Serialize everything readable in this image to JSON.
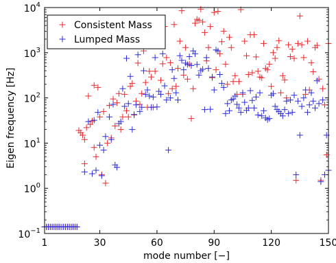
{
  "chart_data": {
    "type": "scatter",
    "title": "",
    "xlabel": "mode number [−]",
    "ylabel": "Eigen frequency [Hz]",
    "xlim": [
      1,
      150
    ],
    "ylim": [
      0.1,
      10000
    ],
    "x_scale": "linear",
    "y_scale": "log",
    "x_ticks": [
      1,
      30,
      60,
      90,
      120,
      150
    ],
    "x_tick_labels": [
      "1",
      "30",
      "60",
      "90",
      "120",
      "150"
    ],
    "y_ticks": [
      0.1,
      1,
      10,
      100,
      1000,
      10000
    ],
    "y_tick_labels": [
      {
        "base": "10",
        "exp": "−1"
      },
      {
        "base": "10",
        "exp": "0"
      },
      {
        "base": "10",
        "exp": "1"
      },
      {
        "base": "10",
        "exp": "2"
      },
      {
        "base": "10",
        "exp": "3"
      },
      {
        "base": "10",
        "exp": "4"
      }
    ],
    "grid": false,
    "legend_position": "top-left",
    "marker": "+",
    "series": [
      {
        "name": "Consistent Mass",
        "color": "#e8262a",
        "points": [
          [
            1,
            0.14
          ],
          [
            2,
            0.14
          ],
          [
            3,
            0.14
          ],
          [
            4,
            0.14
          ],
          [
            5,
            0.14
          ],
          [
            6,
            0.14
          ],
          [
            7,
            0.14
          ],
          [
            8,
            0.14
          ],
          [
            9,
            0.14
          ],
          [
            10,
            0.14
          ],
          [
            11,
            0.14
          ],
          [
            12,
            0.14
          ],
          [
            13,
            0.14
          ],
          [
            14,
            0.14
          ],
          [
            15,
            0.14
          ],
          [
            16,
            0.14
          ],
          [
            17,
            0.14
          ],
          [
            18,
            0.14
          ],
          [
            19,
            19
          ],
          [
            20,
            17
          ],
          [
            21,
            15
          ],
          [
            22,
            12
          ],
          [
            22,
            3.5
          ],
          [
            23,
            22
          ],
          [
            24,
            110
          ],
          [
            25,
            26
          ],
          [
            26,
            31
          ],
          [
            27,
            8
          ],
          [
            27,
            190
          ],
          [
            28,
            5
          ],
          [
            29,
            170
          ],
          [
            30,
            38
          ],
          [
            31,
            2
          ],
          [
            32,
            50
          ],
          [
            33,
            1.3
          ],
          [
            34,
            10
          ],
          [
            35,
            68
          ],
          [
            36,
            13
          ],
          [
            37,
            95
          ],
          [
            38,
            24
          ],
          [
            39,
            78
          ],
          [
            40,
            125
          ],
          [
            41,
            20
          ],
          [
            42,
            38
          ],
          [
            43,
            120
          ],
          [
            44,
            52
          ],
          [
            45,
            38
          ],
          [
            46,
            180
          ],
          [
            47,
            210
          ],
          [
            48,
            42
          ],
          [
            49,
            85
          ],
          [
            50,
            590
          ],
          [
            51,
            72
          ],
          [
            52,
            125
          ],
          [
            53,
            1100
          ],
          [
            54,
            220
          ],
          [
            55,
            62
          ],
          [
            56,
            390
          ],
          [
            57,
            290
          ],
          [
            58,
            62
          ],
          [
            59,
            390
          ],
          [
            60,
            2000
          ],
          [
            61,
            1550
          ],
          [
            62,
            245
          ],
          [
            63,
            570
          ],
          [
            64,
            3800
          ],
          [
            65,
            780
          ],
          [
            66,
            125
          ],
          [
            67,
            600
          ],
          [
            68,
            160
          ],
          [
            69,
            4200
          ],
          [
            70,
            180
          ],
          [
            71,
            450
          ],
          [
            72,
            1800
          ],
          [
            73,
            8500
          ],
          [
            74,
            320
          ],
          [
            75,
            1300
          ],
          [
            76,
            260
          ],
          [
            77,
            560
          ],
          [
            78,
            35
          ],
          [
            79,
            160
          ],
          [
            80,
            4500
          ],
          [
            81,
            5500
          ],
          [
            82,
            5200
          ],
          [
            83,
            9200
          ],
          [
            84,
            4800
          ],
          [
            85,
            2800
          ],
          [
            86,
            660
          ],
          [
            87,
            1300
          ],
          [
            88,
            3800
          ],
          [
            89,
            280
          ],
          [
            90,
            7800
          ],
          [
            91,
            420
          ],
          [
            92,
            8200
          ],
          [
            93,
            950
          ],
          [
            94,
            1750
          ],
          [
            95,
            3000
          ],
          [
            96,
            560
          ],
          [
            97,
            200
          ],
          [
            98,
            2200
          ],
          [
            99,
            1300
          ],
          [
            100,
            230
          ],
          [
            101,
            310
          ],
          [
            102,
            120
          ],
          [
            103,
            230
          ],
          [
            104,
            9000
          ],
          [
            105,
            120
          ],
          [
            106,
            1800
          ],
          [
            107,
            860
          ],
          [
            108,
            330
          ],
          [
            109,
            2500
          ],
          [
            110,
            360
          ],
          [
            111,
            2500
          ],
          [
            112,
            810
          ],
          [
            113,
            390
          ],
          [
            114,
            290
          ],
          [
            115,
            280
          ],
          [
            116,
            1600
          ],
          [
            117,
            450
          ],
          [
            118,
            420
          ],
          [
            119,
            560
          ],
          [
            120,
            180
          ],
          [
            121,
            1000
          ],
          [
            122,
            750
          ],
          [
            123,
            1300
          ],
          [
            124,
            1850
          ],
          [
            125,
            130
          ],
          [
            126,
            310
          ],
          [
            127,
            250
          ],
          [
            128,
            100
          ],
          [
            129,
            1500
          ],
          [
            130,
            820
          ],
          [
            131,
            1200
          ],
          [
            132,
            750
          ],
          [
            133,
            1.5
          ],
          [
            134,
            1600
          ],
          [
            135,
            6500
          ],
          [
            136,
            1500
          ],
          [
            137,
            780
          ],
          [
            138,
            120
          ],
          [
            139,
            1800
          ],
          [
            140,
            150
          ],
          [
            141,
            600
          ],
          [
            142,
            380
          ],
          [
            143,
            1300
          ],
          [
            144,
            1450
          ],
          [
            145,
            260
          ],
          [
            146,
            1.5
          ],
          [
            147,
            160
          ],
          [
            148,
            70
          ],
          [
            149,
            5.5
          ],
          [
            150,
            1600
          ]
        ]
      },
      {
        "name": "Lumped Mass",
        "color": "#2a2ad8",
        "points": [
          [
            1,
            0.14
          ],
          [
            2,
            0.14
          ],
          [
            3,
            0.14
          ],
          [
            4,
            0.14
          ],
          [
            5,
            0.14
          ],
          [
            6,
            0.14
          ],
          [
            7,
            0.14
          ],
          [
            8,
            0.14
          ],
          [
            9,
            0.14
          ],
          [
            10,
            0.14
          ],
          [
            11,
            0.14
          ],
          [
            12,
            0.14
          ],
          [
            13,
            0.14
          ],
          [
            14,
            0.14
          ],
          [
            15,
            0.14
          ],
          [
            16,
            0.14
          ],
          [
            17,
            0.14
          ],
          [
            18,
            0.14
          ],
          [
            22,
            2.3
          ],
          [
            24,
            30
          ],
          [
            26,
            2.1
          ],
          [
            27,
            32
          ],
          [
            28,
            2.5
          ],
          [
            29,
            48
          ],
          [
            30,
            9
          ],
          [
            31,
            1.9
          ],
          [
            32,
            7
          ],
          [
            33,
            14
          ],
          [
            35,
            38
          ],
          [
            36,
            12
          ],
          [
            37,
            72
          ],
          [
            38,
            3.3
          ],
          [
            39,
            2.9
          ],
          [
            40,
            27
          ],
          [
            41,
            30
          ],
          [
            42,
            160
          ],
          [
            43,
            65
          ],
          [
            44,
            750
          ],
          [
            45,
            75
          ],
          [
            46,
            300
          ],
          [
            47,
            20
          ],
          [
            48,
            43
          ],
          [
            49,
            70
          ],
          [
            50,
            900
          ],
          [
            51,
            50
          ],
          [
            52,
            62
          ],
          [
            53,
            400
          ],
          [
            54,
            120
          ],
          [
            55,
            150
          ],
          [
            56,
            110
          ],
          [
            57,
            62
          ],
          [
            58,
            105
          ],
          [
            59,
            780
          ],
          [
            60,
            63
          ],
          [
            61,
            140
          ],
          [
            62,
            120
          ],
          [
            63,
            950
          ],
          [
            64,
            185
          ],
          [
            65,
            90
          ],
          [
            66,
            7
          ],
          [
            67,
            100
          ],
          [
            68,
            420
          ],
          [
            69,
            270
          ],
          [
            70,
            130
          ],
          [
            71,
            90
          ],
          [
            72,
            860
          ],
          [
            73,
            680
          ],
          [
            74,
            420
          ],
          [
            75,
            590
          ],
          [
            76,
            550
          ],
          [
            77,
            820
          ],
          [
            78,
            520
          ],
          [
            79,
            1100
          ],
          [
            80,
            950
          ],
          [
            81,
            550
          ],
          [
            82,
            320
          ],
          [
            83,
            400
          ],
          [
            84,
            430
          ],
          [
            85,
            55
          ],
          [
            86,
            780
          ],
          [
            87,
            450
          ],
          [
            88,
            56
          ],
          [
            89,
            290
          ],
          [
            90,
            150
          ],
          [
            91,
            1150
          ],
          [
            92,
            1100
          ],
          [
            93,
            330
          ],
          [
            94,
            210
          ],
          [
            95,
            170
          ],
          [
            96,
            45
          ],
          [
            97,
            75
          ],
          [
            98,
            52
          ],
          [
            99,
            90
          ],
          [
            100,
            95
          ],
          [
            101,
            110
          ],
          [
            102,
            72
          ],
          [
            103,
            60
          ],
          [
            104,
            48
          ],
          [
            105,
            130
          ],
          [
            106,
            80
          ],
          [
            107,
            53
          ],
          [
            108,
            60
          ],
          [
            109,
            145
          ],
          [
            110,
            88
          ],
          [
            111,
            60
          ],
          [
            112,
            105
          ],
          [
            113,
            42
          ],
          [
            114,
            130
          ],
          [
            115,
            40
          ],
          [
            116,
            52
          ],
          [
            117,
            36
          ],
          [
            118,
            33
          ],
          [
            119,
            35
          ],
          [
            120,
            115
          ],
          [
            121,
            125
          ],
          [
            122,
            65
          ],
          [
            123,
            55
          ],
          [
            124,
            50
          ],
          [
            125,
            45
          ],
          [
            126,
            40
          ],
          [
            127,
            55
          ],
          [
            128,
            85
          ],
          [
            129,
            45
          ],
          [
            130,
            90
          ],
          [
            131,
            48
          ],
          [
            132,
            115
          ],
          [
            133,
            2
          ],
          [
            134,
            85
          ],
          [
            135,
            15
          ],
          [
            136,
            65
          ],
          [
            137,
            100
          ],
          [
            138,
            150
          ],
          [
            139,
            48
          ],
          [
            140,
            70
          ],
          [
            141,
            130
          ],
          [
            142,
            85
          ],
          [
            143,
            60
          ],
          [
            144,
            240
          ],
          [
            145,
            75
          ],
          [
            146,
            1.4
          ],
          [
            147,
            90
          ],
          [
            148,
            2
          ],
          [
            149,
            15
          ],
          [
            150,
            2.5
          ]
        ]
      }
    ]
  }
}
